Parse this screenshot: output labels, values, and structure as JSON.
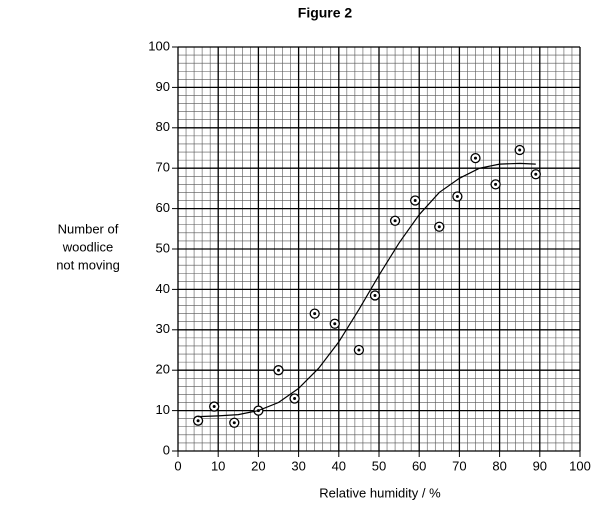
{
  "chart_data": {
    "type": "scatter",
    "title": "Figure 2",
    "x_label": "Relative humidity / %",
    "y_label": [
      "Number of",
      "woodlice",
      "not moving"
    ],
    "xlim": [
      0,
      100
    ],
    "ylim": [
      0,
      100
    ],
    "xticks": [
      0,
      10,
      20,
      30,
      40,
      50,
      60,
      70,
      80,
      90,
      100
    ],
    "yticks": [
      0,
      10,
      20,
      30,
      40,
      50,
      60,
      70,
      80,
      90,
      100
    ],
    "grid": true,
    "minor_grid": 5,
    "series": [
      {
        "color": "#000000",
        "mode": "markers",
        "x": [
          5,
          9,
          14,
          20,
          25,
          29,
          34,
          39,
          45,
          49,
          54,
          59,
          65,
          69.5,
          74,
          79,
          85,
          89
        ],
        "values": [
          7.5,
          11,
          7,
          10,
          20,
          13,
          34,
          31.5,
          25,
          38.5,
          57,
          62,
          55.5,
          63,
          72.5,
          66,
          74.5,
          68.5
        ]
      },
      {
        "color": "#000000",
        "mode": "line",
        "x": [
          5,
          10,
          15,
          20,
          25,
          30,
          35,
          40,
          45,
          50,
          55,
          60,
          65,
          70,
          75,
          80,
          85,
          89
        ],
        "values": [
          8.5,
          8.7,
          9,
          10,
          12,
          15.5,
          20.5,
          27,
          35,
          43.5,
          51.5,
          58.5,
          64,
          67.5,
          70,
          71,
          71.2,
          71
        ]
      }
    ]
  }
}
